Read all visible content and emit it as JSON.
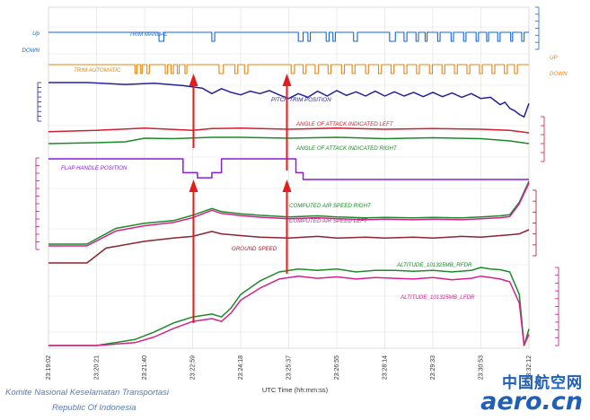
{
  "chart_data": {
    "type": "line",
    "title": "",
    "xlabel": "UTC Time (hh:mm:ss)",
    "x_ticks": [
      "23:19:02",
      "23:20:21",
      "23:21:40",
      "23:22:59",
      "23:24:18",
      "23:25:37",
      "23:26:55",
      "23:28:14",
      "23:29:33",
      "23:30:53",
      "23:32:12"
    ],
    "side_labels": {
      "up_left": "Up",
      "down_left": "DOWN",
      "up_right": "UP",
      "down_right": "DOWN"
    },
    "series": [
      {
        "name": "TRIM MANUAL",
        "color": "#1565d8",
        "kind": "digital",
        "base": 1,
        "active": 0,
        "pulses": [
          [
            23.0,
            24.0
          ],
          [
            34.0,
            34.6
          ],
          [
            52.0,
            53.0
          ],
          [
            54.0,
            54.5
          ],
          [
            57.8,
            58.4
          ],
          [
            59.2,
            59.7
          ],
          [
            63.5,
            64.3
          ],
          [
            71.0,
            72.2
          ],
          [
            74.0,
            74.6
          ],
          [
            76.5,
            77.0
          ],
          [
            78.4,
            78.8
          ],
          [
            81.0,
            81.5
          ],
          [
            83.8,
            84.3
          ],
          [
            86.4,
            86.9
          ],
          [
            89.0,
            89.5
          ],
          [
            91.2,
            91.6
          ],
          [
            93.5,
            94.0
          ],
          [
            96.2,
            96.6
          ],
          [
            98.5,
            99.0
          ]
        ]
      },
      {
        "name": "TRIM AUTOMATIC",
        "color": "#e8830f",
        "kind": "digital",
        "base": 0,
        "active": 1,
        "pulses": [
          [
            18.0,
            18.4
          ],
          [
            19.2,
            19.5
          ],
          [
            20.5,
            21.0
          ],
          [
            24.3,
            24.8
          ],
          [
            25.5,
            26.0
          ],
          [
            26.8,
            27.2
          ],
          [
            28.4,
            28.8
          ],
          [
            35.5,
            36.4
          ],
          [
            38.8,
            39.4
          ],
          [
            40.8,
            41.5
          ],
          [
            50.5,
            51.2
          ],
          [
            53.0,
            53.6
          ],
          [
            55.5,
            56.2
          ],
          [
            58.2,
            58.8
          ],
          [
            61.0,
            61.6
          ],
          [
            63.2,
            63.8
          ],
          [
            66.0,
            66.6
          ],
          [
            68.7,
            69.3
          ],
          [
            71.3,
            71.9
          ],
          [
            74.0,
            74.6
          ],
          [
            76.6,
            77.2
          ],
          [
            79.3,
            79.9
          ],
          [
            81.9,
            82.5
          ],
          [
            84.5,
            85.1
          ],
          [
            87.1,
            87.7
          ],
          [
            89.7,
            90.3
          ],
          [
            92.3,
            92.9
          ],
          [
            94.9,
            95.5
          ],
          [
            97.0,
            97.6
          ]
        ]
      },
      {
        "name": "PITCH TRIM POSITION",
        "color": "#22229e",
        "x": [
          0,
          8,
          16,
          22,
          28,
          32,
          34,
          36,
          38,
          40,
          42,
          44,
          46,
          48,
          50,
          52,
          54,
          56,
          58,
          60,
          62,
          64,
          66,
          68,
          70,
          72,
          74,
          76,
          78,
          80,
          82,
          84,
          86,
          88,
          90,
          92,
          94,
          95,
          96,
          97,
          98,
          99,
          100
        ],
        "y": [
          5.0,
          5.0,
          4.85,
          4.95,
          4.75,
          4.55,
          4.1,
          4.5,
          4.2,
          4.0,
          4.3,
          4.1,
          4.35,
          4.0,
          3.7,
          4.1,
          3.8,
          4.3,
          3.9,
          4.35,
          3.95,
          4.25,
          3.9,
          4.3,
          3.9,
          4.25,
          3.9,
          4.2,
          3.85,
          4.2,
          3.85,
          4.15,
          3.8,
          4.1,
          3.7,
          3.8,
          3.2,
          3.4,
          2.9,
          2.7,
          2.4,
          2.2,
          3.3
        ]
      },
      {
        "name": "ANGLE OF ATTACK INDICATED LEFT",
        "color": "#d21e2e",
        "x": [
          0,
          10,
          20,
          30,
          34,
          40,
          50,
          60,
          70,
          80,
          90,
          96,
          100
        ],
        "y": [
          3.0,
          3.1,
          3.3,
          3.1,
          3.25,
          3.3,
          3.2,
          3.3,
          3.2,
          3.25,
          3.2,
          3.1,
          2.9
        ]
      },
      {
        "name": "ANGLE OF ATTACK INDICATED RIGHT",
        "color": "#1d8a2a",
        "x": [
          0,
          10,
          16,
          20,
          26,
          34,
          40,
          50,
          60,
          70,
          80,
          90,
          96,
          100
        ],
        "y": [
          1.5,
          1.6,
          1.7,
          2.1,
          2.05,
          2.2,
          2.2,
          2.1,
          2.2,
          2.05,
          2.15,
          2.05,
          1.8,
          1.5
        ]
      },
      {
        "name": "FLAP HANDLE POSITION",
        "color": "#8a1ed6",
        "kind": "step",
        "steps": [
          [
            0,
            2.6
          ],
          [
            28,
            1.8
          ],
          [
            31,
            1.5
          ],
          [
            34,
            1.8
          ],
          [
            36,
            2.6
          ],
          [
            50,
            2.6
          ],
          [
            51.5,
            1.8
          ],
          [
            53,
            1.4
          ],
          [
            100,
            1.4
          ]
        ]
      },
      {
        "name": "COMPUTED AIR SPEED RIGHT",
        "color": "#1d8a2a",
        "x": [
          0,
          8,
          14,
          20,
          26,
          30,
          34,
          36,
          40,
          44,
          50,
          56,
          60,
          66,
          70,
          76,
          80,
          86,
          90,
          94,
          96,
          98,
          100
        ],
        "y": [
          160,
          160,
          190,
          200,
          205,
          215,
          228,
          222,
          218,
          215,
          212,
          214,
          212,
          210,
          211,
          210,
          211,
          210,
          212,
          214,
          216,
          240,
          280
        ]
      },
      {
        "name": "COMPUTED AIR SPEED LEFT",
        "color": "#d6208e",
        "x": [
          0,
          8,
          14,
          20,
          26,
          30,
          34,
          36,
          40,
          44,
          50,
          56,
          60,
          66,
          70,
          76,
          80,
          86,
          90,
          94,
          96,
          98,
          100
        ],
        "y": [
          158,
          158,
          186,
          196,
          202,
          211,
          225,
          219,
          215,
          212,
          209,
          211,
          209,
          207,
          208,
          207,
          208,
          207,
          209,
          211,
          213,
          237,
          276
        ]
      },
      {
        "name": "GROUND SPEED",
        "color": "#8c2430",
        "x": [
          0,
          8,
          12,
          20,
          26,
          30,
          34,
          36,
          40,
          44,
          50,
          56,
          60,
          66,
          70,
          76,
          80,
          86,
          90,
          94,
          96,
          98,
          100
        ],
        "y": [
          130,
          130,
          148,
          156,
          160,
          162,
          168,
          165,
          163,
          161,
          160,
          162,
          160,
          161,
          160,
          161,
          160,
          162,
          161,
          163,
          164,
          165,
          170
        ]
      },
      {
        "name": "ALTITUDE_101325MB_RFDR",
        "color": "#1d8a2a",
        "x": [
          0,
          10,
          18,
          22,
          26,
          30,
          34,
          36,
          38,
          40,
          44,
          48,
          52,
          56,
          60,
          64,
          68,
          72,
          76,
          80,
          84,
          88,
          90,
          92,
          94,
          96,
          98,
          99,
          100
        ],
        "y": [
          0,
          0,
          400,
          900,
          1500,
          1900,
          2100,
          1900,
          2500,
          3400,
          4300,
          4900,
          5100,
          5000,
          5100,
          4900,
          5000,
          5000,
          4950,
          5000,
          4900,
          5000,
          5200,
          5100,
          5050,
          4900,
          3400,
          0,
          1100
        ]
      },
      {
        "name": "ALTITUDE_101325MB_LFDR",
        "color": "#d6208e",
        "x": [
          0,
          10,
          18,
          22,
          26,
          30,
          34,
          36,
          38,
          40,
          44,
          48,
          52,
          56,
          60,
          64,
          68,
          72,
          76,
          80,
          84,
          88,
          90,
          92,
          94,
          96,
          98,
          99,
          100
        ],
        "y": [
          0,
          0,
          200,
          600,
          1200,
          1700,
          1900,
          1700,
          2300,
          3200,
          4050,
          4700,
          4900,
          4750,
          4850,
          4700,
          4800,
          4750,
          4700,
          4800,
          4650,
          4750,
          4900,
          4800,
          4700,
          4500,
          3000,
          0,
          800
        ]
      }
    ],
    "annotations": {
      "red_arrows": [
        "23:22:59",
        "23:25:37"
      ]
    }
  },
  "footer": {
    "line1": "Komite Nasional Keselamatan Transportasi",
    "line2": "Republic Of Indonesia"
  },
  "watermark": {
    "cn": "中国航空网",
    "en": "aero.cn"
  }
}
